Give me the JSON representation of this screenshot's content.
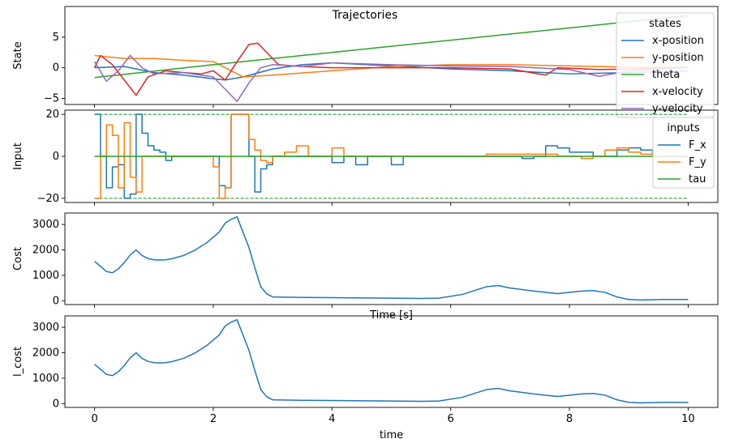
{
  "figure_title": "Trajectories",
  "shared_xticks": [
    0,
    2,
    4,
    6,
    8,
    10
  ],
  "colors": {
    "c0": "#1f77b4",
    "c1": "#ff7f0e",
    "c2": "#2ca02c",
    "c3": "#d62728",
    "c4": "#9467bd"
  },
  "chart_data": [
    {
      "type": "line",
      "ylabel": "State",
      "xlabel": "",
      "xlim": [
        -0.5,
        10.5
      ],
      "ylim": [
        -6,
        10
      ],
      "yticks": [
        -5,
        0,
        5
      ],
      "legend": {
        "title": "states",
        "placement": "top-right"
      },
      "series": [
        {
          "name": "x-position",
          "color": "#1f77b4",
          "x": [
            0,
            0.5,
            1,
            1.5,
            2,
            2.2,
            2.5,
            3,
            3.5,
            4,
            5,
            6,
            7,
            8,
            9,
            10
          ],
          "y": [
            0,
            0.2,
            -0.8,
            -1.2,
            -1.8,
            -2,
            -1.5,
            -0.2,
            0.5,
            0.8,
            0.3,
            -0.2,
            -0.5,
            -1,
            -0.8,
            -0.5
          ]
        },
        {
          "name": "y-position",
          "color": "#ff7f0e",
          "x": [
            0,
            0.5,
            1,
            1.5,
            2,
            2.5,
            3,
            4,
            5,
            6,
            7,
            8,
            9,
            10
          ],
          "y": [
            2,
            1.5,
            1.5,
            1.2,
            1,
            -1.5,
            -1.2,
            -0.5,
            0.2,
            0.5,
            0.5,
            0.3,
            0.1,
            0.1
          ]
        },
        {
          "name": "theta",
          "color": "#2ca02c",
          "x": [
            0,
            2,
            4,
            6,
            8,
            10
          ],
          "y": [
            -1.6,
            0.5,
            2.5,
            4.5,
            6.5,
            8.5
          ]
        },
        {
          "name": "x-velocity",
          "color": "#d62728",
          "x": [
            0,
            0.1,
            0.3,
            0.5,
            0.7,
            0.9,
            1.2,
            1.5,
            1.8,
            2.0,
            2.2,
            2.4,
            2.6,
            2.75,
            2.9,
            3.1,
            3.5,
            4,
            5,
            6,
            7,
            7.6,
            7.8,
            8.5,
            9,
            10
          ],
          "y": [
            0,
            2,
            0.5,
            -2,
            -4.5,
            -1.5,
            -0.5,
            -0.8,
            -1,
            -0.5,
            -2,
            1,
            3.8,
            4,
            2.5,
            0.5,
            0.2,
            0,
            0,
            0,
            -0.2,
            -1.2,
            0,
            -0.3,
            -0.2,
            0
          ]
        },
        {
          "name": "y-velocity",
          "color": "#9467bd",
          "x": [
            0,
            0.2,
            0.4,
            0.6,
            0.8,
            1,
            1.5,
            2,
            2.2,
            2.4,
            2.6,
            2.8,
            3,
            3.5,
            4,
            5,
            6,
            7,
            8,
            8.5,
            9,
            10
          ],
          "y": [
            1,
            -2.2,
            -0.5,
            2,
            0,
            -1,
            -0.8,
            -1.5,
            -3.5,
            -5.5,
            -2.5,
            0,
            0.5,
            0.2,
            0.8,
            0.5,
            0.3,
            0.2,
            -0.3,
            -1.4,
            -0.5,
            0
          ]
        }
      ]
    },
    {
      "type": "line",
      "ylabel": "Input",
      "xlabel": "",
      "xlim": [
        -0.5,
        10.5
      ],
      "ylim": [
        -22,
        22
      ],
      "yticks": [
        -20,
        0,
        20
      ],
      "bounds": [
        -20,
        20
      ],
      "legend": {
        "title": "inputs",
        "placement": "top-right"
      },
      "series": [
        {
          "name": "F_x",
          "color": "#1f77b4",
          "step": true,
          "x": [
            0,
            0.1,
            0.2,
            0.3,
            0.4,
            0.5,
            0.6,
            0.7,
            0.8,
            0.9,
            1.0,
            1.1,
            1.2,
            1.3,
            1.4,
            1.5,
            1.6,
            1.7,
            1.8,
            1.9,
            2.0,
            2.1,
            2.2,
            2.3,
            2.4,
            2.5,
            2.6,
            2.7,
            2.8,
            2.9,
            3.0,
            3.2,
            3.4,
            3.6,
            3.8,
            4.0,
            4.2,
            4.4,
            4.6,
            4.8,
            5.0,
            5.2,
            5.4,
            5.6,
            5.8,
            6.0,
            6.2,
            6.4,
            6.6,
            6.8,
            7.0,
            7.2,
            7.4,
            7.6,
            7.8,
            8.0,
            8.2,
            8.4,
            8.6,
            8.8,
            9.0,
            9.2,
            9.4,
            9.6,
            9.8
          ],
          "y": [
            20,
            0,
            -15,
            -5,
            -4,
            -20,
            -18,
            20,
            11,
            5,
            3,
            2,
            -2,
            0,
            0,
            0,
            0,
            0,
            0,
            0,
            0,
            -14,
            -15,
            20,
            20,
            20,
            0,
            -17,
            -6,
            -4,
            0,
            0,
            0,
            0,
            0,
            -3,
            0,
            -4,
            0,
            0,
            -4,
            0,
            0,
            0,
            0,
            0,
            0,
            0,
            0,
            0,
            0,
            -1,
            0,
            5,
            4,
            2,
            2,
            0,
            0,
            3,
            4,
            3,
            0,
            0,
            0
          ]
        },
        {
          "name": "F_y",
          "color": "#ff7f0e",
          "step": true,
          "x": [
            0,
            0.1,
            0.2,
            0.3,
            0.4,
            0.5,
            0.6,
            0.7,
            0.8,
            0.9,
            1.0,
            1.1,
            1.2,
            1.3,
            1.4,
            1.5,
            1.6,
            1.7,
            1.8,
            1.9,
            2.0,
            2.1,
            2.2,
            2.3,
            2.4,
            2.5,
            2.6,
            2.7,
            2.8,
            2.9,
            3.0,
            3.2,
            3.4,
            3.6,
            3.8,
            4.0,
            4.2,
            4.4,
            4.6,
            4.8,
            5.0,
            5.2,
            5.4,
            5.6,
            5.8,
            6.0,
            6.2,
            6.4,
            6.6,
            6.8,
            7.0,
            7.2,
            7.4,
            7.6,
            7.8,
            8.0,
            8.2,
            8.4,
            8.6,
            8.8,
            9.0,
            9.2,
            9.4,
            9.6,
            9.8
          ],
          "y": [
            -20,
            0,
            15,
            10,
            -15,
            16,
            -10,
            -17,
            0,
            0,
            0,
            0,
            0,
            0,
            0,
            0,
            0,
            0,
            0,
            0,
            -5,
            -20,
            -15,
            20,
            20,
            20,
            8,
            3,
            -2,
            -3,
            0,
            2,
            5,
            0,
            0,
            4,
            0,
            0,
            0,
            0,
            0,
            0,
            0,
            0,
            0,
            0,
            0,
            0,
            1,
            1,
            1,
            1,
            1,
            1,
            0,
            0,
            -1,
            0,
            3,
            4,
            2,
            1,
            0,
            0,
            0
          ]
        },
        {
          "name": "tau",
          "color": "#2ca02c",
          "step": false,
          "x": [
            0,
            10
          ],
          "y": [
            0,
            0
          ]
        }
      ]
    },
    {
      "type": "line",
      "ylabel": "Cost",
      "xlabel": "Time [s]",
      "xlim": [
        -0.5,
        10.5
      ],
      "ylim": [
        -150,
        3450
      ],
      "yticks": [
        0,
        1000,
        2000,
        3000
      ],
      "series": [
        {
          "name": "",
          "color": "#1f77b4",
          "x": [
            0,
            0.1,
            0.2,
            0.3,
            0.4,
            0.5,
            0.6,
            0.7,
            0.8,
            0.9,
            1.0,
            1.1,
            1.2,
            1.3,
            1.5,
            1.7,
            1.9,
            2.1,
            2.2,
            2.3,
            2.4,
            2.5,
            2.6,
            2.7,
            2.8,
            2.9,
            3.0,
            3.2,
            3.5,
            4,
            5,
            5.5,
            5.8,
            6.2,
            6.6,
            6.8,
            7.0,
            7.4,
            7.8,
            8.2,
            8.4,
            8.6,
            8.8,
            9.0,
            9.2,
            9.6,
            10
          ],
          "y": [
            1550,
            1350,
            1150,
            1100,
            1250,
            1500,
            1800,
            2000,
            1780,
            1660,
            1610,
            1600,
            1610,
            1650,
            1780,
            2000,
            2300,
            2700,
            3050,
            3200,
            3300,
            2700,
            2100,
            1300,
            550,
            270,
            150,
            140,
            130,
            120,
            100,
            90,
            100,
            250,
            550,
            600,
            500,
            380,
            280,
            380,
            400,
            330,
            150,
            50,
            30,
            50,
            50
          ]
        }
      ]
    },
    {
      "type": "line",
      "ylabel": "l_cost",
      "xlabel": "time",
      "xlim": [
        -0.5,
        10.5
      ],
      "ylim": [
        -150,
        3450
      ],
      "yticks": [
        0,
        1000,
        2000,
        3000
      ],
      "series": [
        {
          "name": "",
          "color": "#1f77b4",
          "x": [
            0,
            0.1,
            0.2,
            0.3,
            0.4,
            0.5,
            0.6,
            0.7,
            0.8,
            0.9,
            1.0,
            1.1,
            1.2,
            1.3,
            1.5,
            1.7,
            1.9,
            2.1,
            2.2,
            2.3,
            2.4,
            2.5,
            2.6,
            2.7,
            2.8,
            2.9,
            3.0,
            3.2,
            3.5,
            4,
            5,
            5.5,
            5.8,
            6.2,
            6.6,
            6.8,
            7.0,
            7.4,
            7.8,
            8.2,
            8.4,
            8.6,
            8.8,
            9.0,
            9.2,
            9.6,
            10
          ],
          "y": [
            1550,
            1350,
            1150,
            1100,
            1250,
            1500,
            1800,
            2000,
            1780,
            1660,
            1610,
            1600,
            1610,
            1650,
            1780,
            2000,
            2300,
            2700,
            3050,
            3200,
            3300,
            2700,
            2100,
            1300,
            550,
            270,
            150,
            140,
            130,
            120,
            100,
            90,
            100,
            250,
            550,
            600,
            500,
            380,
            280,
            380,
            400,
            330,
            150,
            50,
            30,
            50,
            50
          ]
        }
      ]
    }
  ]
}
